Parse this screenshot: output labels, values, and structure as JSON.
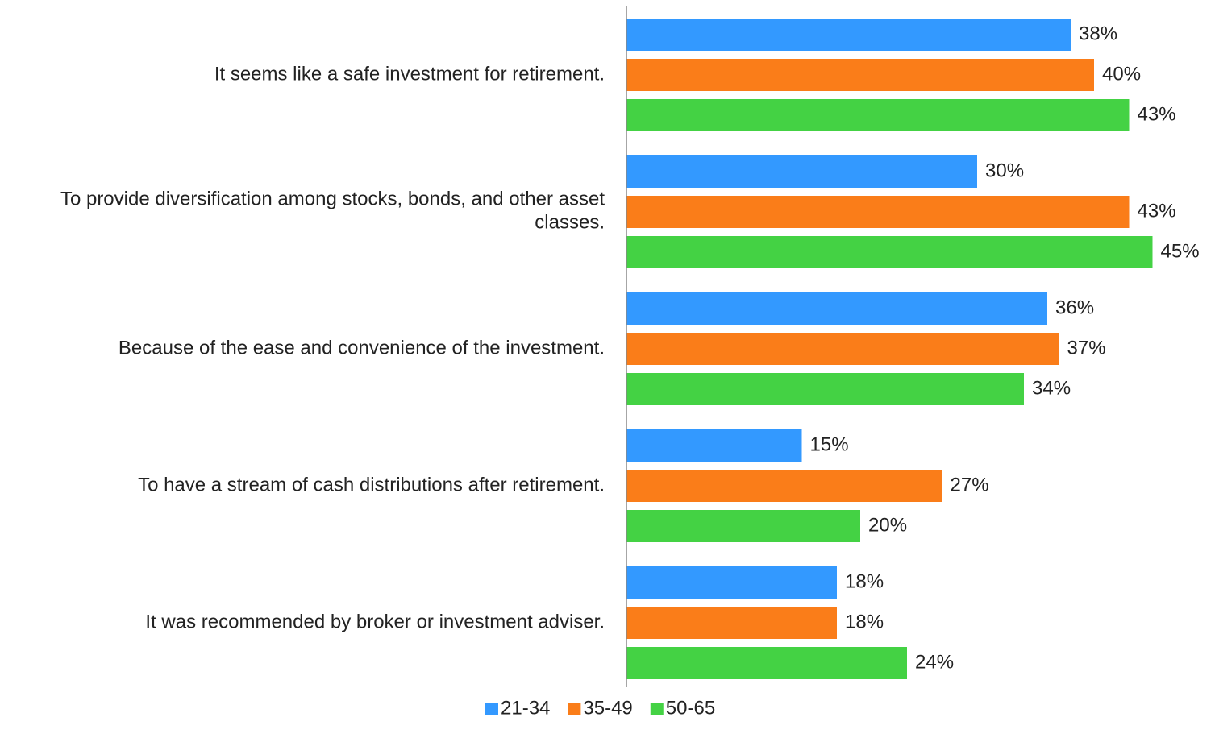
{
  "chart_data": {
    "type": "barh",
    "categories": [
      "It seems like a safe investment for retirement.",
      "To provide diversification among stocks, bonds, and other asset classes.",
      "Because of the ease and convenience of the investment.",
      "To have a stream of cash distributions after retirement.",
      "It was recommended by broker or investment adviser."
    ],
    "series": [
      {
        "name": "21-34",
        "color": "#3399ff",
        "values": [
          38,
          30,
          36,
          15,
          18
        ],
        "value_labels": [
          "38%",
          "30%",
          "36%",
          "15%",
          "18%"
        ]
      },
      {
        "name": "35-49",
        "color": "#fa7d19",
        "values": [
          40,
          43,
          37,
          27,
          18
        ],
        "value_labels": [
          "40%",
          "43%",
          "37%",
          "27%",
          "18%"
        ]
      },
      {
        "name": "50-65",
        "color": "#44d244",
        "values": [
          43,
          45,
          34,
          20,
          24
        ],
        "value_labels": [
          "43%",
          "45%",
          "34%",
          "20%",
          "24%"
        ]
      }
    ],
    "xlim": [
      0,
      50
    ],
    "legend": "bottom"
  }
}
